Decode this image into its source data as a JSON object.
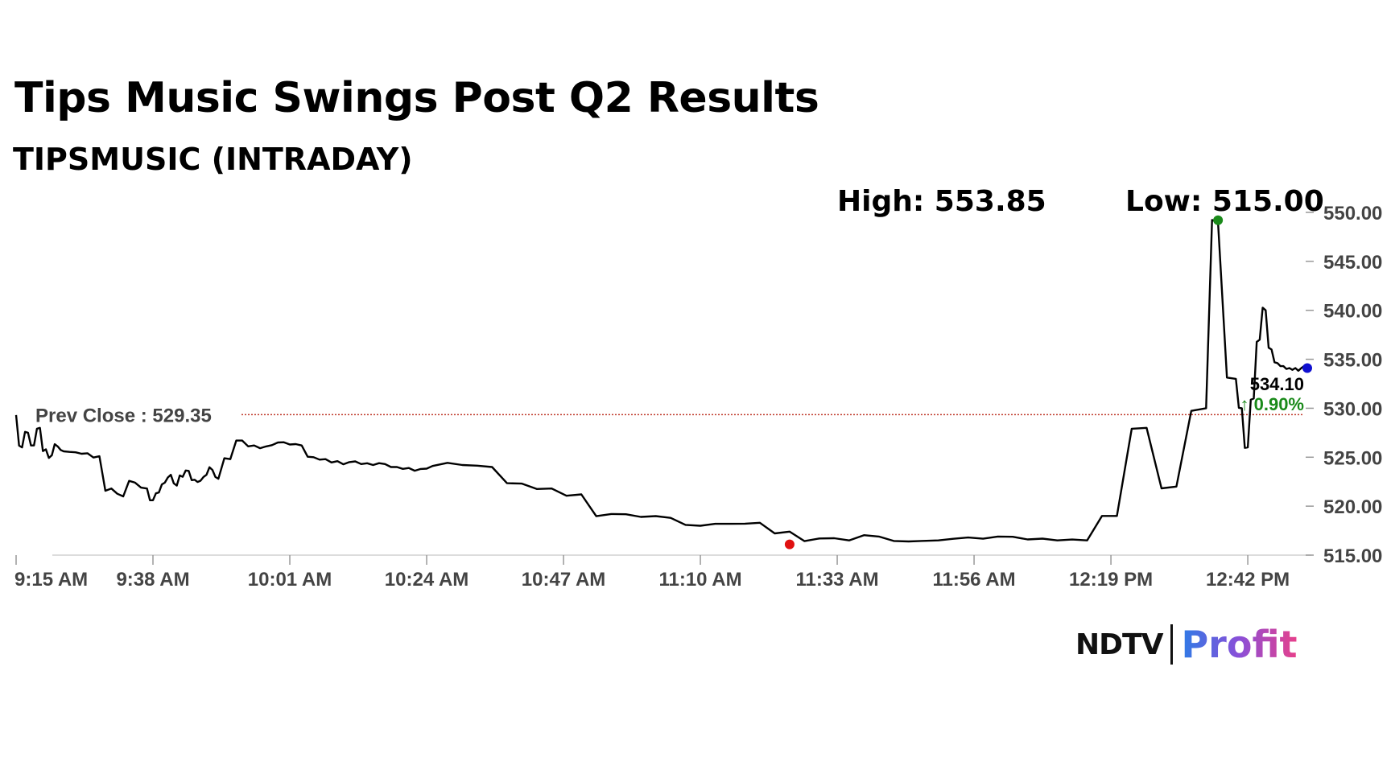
{
  "header": {
    "title": "Tips Music Swings Post Q2 Results",
    "subtitle": "TIPSMUSIC (INTRADAY)",
    "high_label": "High: 553.85",
    "low_label": "Low: 515.00"
  },
  "logo": {
    "brand": "NDTV",
    "product": "Profit"
  },
  "colors": {
    "line": "#000000",
    "prev_close_line": "#c0392b",
    "high_marker": "#1a8a1a",
    "low_marker": "#e01010",
    "last_marker": "#1010d0",
    "change_up": "#1a8a1a"
  },
  "chart_data": {
    "type": "line",
    "title": "Tips Music Swings Post Q2 Results",
    "subtitle": "TIPSMUSIC (INTRADAY)",
    "x_tick_labels": [
      "9:15 AM",
      "9:38 AM",
      "10:01 AM",
      "10:24 AM",
      "10:47 AM",
      "11:10 AM",
      "11:33 AM",
      "11:56 AM",
      "12:19 PM",
      "12:42 PM"
    ],
    "y_tick_labels": [
      "550.00",
      "545.00",
      "540.00",
      "535.00",
      "530.00",
      "525.00",
      "520.00",
      "515.00"
    ],
    "y_ticks": [
      550,
      545,
      540,
      535,
      530,
      525,
      520,
      515
    ],
    "ylim": [
      515,
      550
    ],
    "x_unit": "minutes after 9:15 AM",
    "xlim": [
      0,
      217
    ],
    "grid": false,
    "prev_close": {
      "label": "Prev Close : 529.35",
      "value": 529.35
    },
    "high": {
      "label": "High: 553.85",
      "value": 553.85,
      "marker_y": 549.2
    },
    "low": {
      "label": "Low: 515.00",
      "value": 515.0,
      "marker_y": 516.1
    },
    "last": {
      "value": 534.1,
      "price_label": "534.10",
      "change_label": "↑ 0.90%"
    },
    "series": [
      {
        "x": [
          0,
          1,
          2,
          3,
          4,
          5,
          6,
          7,
          8,
          10,
          12,
          14,
          16,
          18,
          20,
          22,
          23,
          24,
          25,
          26,
          27,
          28,
          29,
          30,
          31,
          32,
          33,
          34,
          36,
          38,
          40,
          42,
          44,
          46,
          48,
          50,
          52,
          54,
          56,
          58,
          60,
          62,
          64,
          66,
          68,
          70,
          75,
          80,
          85,
          90,
          95,
          100,
          105,
          110,
          115,
          120,
          125,
          130,
          135,
          140,
          145,
          150,
          155,
          160,
          165,
          170,
          175,
          180,
          185,
          190,
          195,
          200,
          202,
          205,
          206,
          207,
          208,
          209,
          210,
          211,
          212,
          213,
          214,
          215,
          216,
          217
        ],
        "y": [
          529.3,
          526.0,
          527.5,
          526.2,
          528.0,
          525.8,
          525.2,
          526.1,
          525.6,
          525.5,
          525.4,
          525.1,
          521.8,
          521.0,
          522.4,
          521.8,
          520.6,
          521.4,
          522.4,
          523.2,
          522.1,
          523.0,
          523.6,
          522.7,
          522.6,
          523.2,
          523.7,
          522.8,
          524.8,
          526.7,
          526.2,
          526.1,
          526.5,
          526.3,
          526.2,
          525.0,
          524.8,
          524.6,
          524.5,
          524.3,
          524.2,
          524.3,
          524.0,
          523.9,
          523.8,
          524.1,
          524.2,
          524.0,
          522.3,
          521.8,
          521.2,
          519.2,
          518.9,
          518.8,
          518.0,
          518.2,
          518.3,
          517.4,
          516.7,
          516.5,
          516.9,
          516.4,
          516.5,
          516.8,
          516.9,
          516.6,
          516.5,
          516.5,
          519.0,
          528.0,
          522.0,
          530.0,
          549.0,
          533.0,
          530.0,
          526.0,
          531.0,
          537.0,
          540.0,
          536.0,
          534.6,
          534.3,
          534.1,
          534.1,
          534.1,
          534.1
        ]
      }
    ]
  }
}
